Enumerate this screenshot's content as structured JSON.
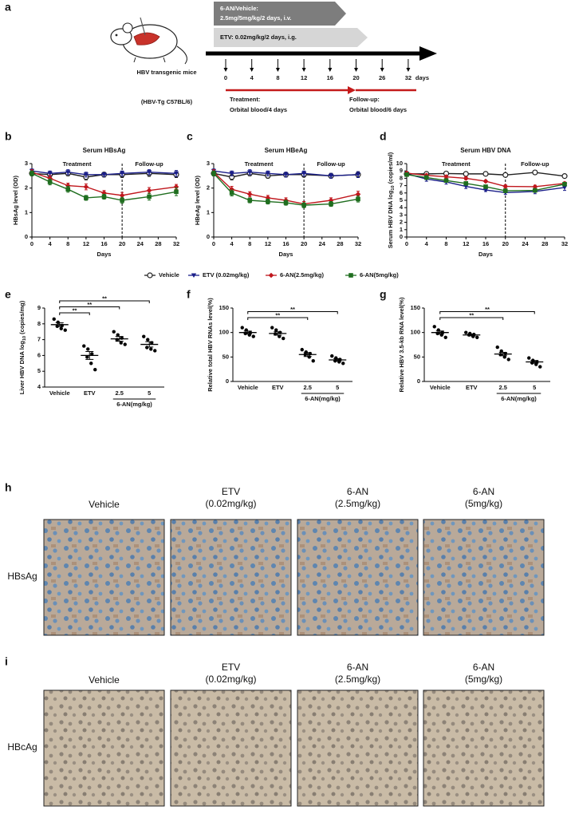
{
  "panel_labels": [
    "a",
    "b",
    "c",
    "d",
    "e",
    "f",
    "g",
    "h",
    "i"
  ],
  "schema": {
    "arrow1": [
      "6-AN/Vehicle:",
      "2.5mg/5mg/kg/2 days, i.v."
    ],
    "arrow2": "ETV: 0.02mg/kg/2 days, i.g.",
    "mice_label": "HBV transgenic mice",
    "mice_strain": "(HBV-Tg C57BL/6)",
    "days": [
      0,
      4,
      8,
      12,
      16,
      20,
      26,
      32
    ],
    "days_unit": "days",
    "treatment": [
      "Treatment:",
      "Orbital blood/4 days"
    ],
    "followup": [
      "Follow-up:",
      "Orbital blood/6 days"
    ]
  },
  "chart_data": [
    {
      "type": "line",
      "title": "Serum HBsAg",
      "annotations": [
        "Treatment",
        "Follow-up"
      ],
      "divider_x": 20,
      "x": [
        0,
        4,
        8,
        12,
        16,
        20,
        26,
        32
      ],
      "xlim": [
        0,
        32
      ],
      "xticks": [
        0,
        4,
        8,
        12,
        16,
        20,
        24,
        28,
        32
      ],
      "ylim": [
        0,
        3
      ],
      "yticks": [
        0,
        1,
        2,
        3
      ],
      "x_label": "Days",
      "y_label": "HBsAg level (OD)",
      "series": [
        {
          "name": "Vehicle",
          "color": "#222222",
          "marker": "circle",
          "values": [
            2.6,
            2.55,
            2.6,
            2.45,
            2.55,
            2.55,
            2.6,
            2.55
          ],
          "errors": [
            0.1,
            0.12,
            0.1,
            0.12,
            0.1,
            0.12,
            0.12,
            0.12
          ]
        },
        {
          "name": "ETV (0.02mg/kg)",
          "color": "#1b1f8a",
          "marker": "triangle",
          "values": [
            2.7,
            2.6,
            2.65,
            2.55,
            2.55,
            2.6,
            2.65,
            2.6
          ],
          "errors": [
            0.08,
            0.1,
            0.1,
            0.1,
            0.08,
            0.1,
            0.1,
            0.12
          ]
        },
        {
          "name": "6-AN(2.5mg/kg)",
          "color": "#c0171d",
          "marker": "diamond",
          "values": [
            2.65,
            2.4,
            2.1,
            2.05,
            1.8,
            1.7,
            1.9,
            2.05
          ],
          "errors": [
            0.1,
            0.12,
            0.1,
            0.12,
            0.1,
            0.12,
            0.12,
            0.1
          ]
        },
        {
          "name": "6-AN(5mg/kg)",
          "color": "#1f6e1f",
          "marker": "square",
          "values": [
            2.6,
            2.25,
            1.95,
            1.6,
            1.65,
            1.5,
            1.65,
            1.85
          ],
          "errors": [
            0.1,
            0.12,
            0.12,
            0.1,
            0.1,
            0.12,
            0.14,
            0.16
          ]
        }
      ]
    },
    {
      "type": "line",
      "title": "Serum HBeAg",
      "annotations": [
        "Treatment",
        "Follow-up"
      ],
      "divider_x": 20,
      "x": [
        0,
        4,
        8,
        12,
        16,
        20,
        26,
        32
      ],
      "xlim": [
        0,
        32
      ],
      "xticks": [
        0,
        4,
        8,
        12,
        16,
        20,
        24,
        28,
        32
      ],
      "ylim": [
        0,
        3
      ],
      "yticks": [
        0,
        1,
        2,
        3
      ],
      "x_label": "Days",
      "y_label": "HBeAg level (OD)",
      "series": [
        {
          "name": "Vehicle",
          "color": "#222222",
          "marker": "circle",
          "values": [
            2.6,
            2.45,
            2.6,
            2.5,
            2.55,
            2.55,
            2.5,
            2.55
          ],
          "errors": [
            0.1,
            0.12,
            0.1,
            0.1,
            0.1,
            0.1,
            0.1,
            0.12
          ]
        },
        {
          "name": "ETV (0.02mg/kg)",
          "color": "#1b1f8a",
          "marker": "triangle",
          "values": [
            2.7,
            2.6,
            2.65,
            2.6,
            2.55,
            2.6,
            2.5,
            2.55
          ],
          "errors": [
            0.08,
            0.1,
            0.1,
            0.1,
            0.1,
            0.1,
            0.1,
            0.12
          ]
        },
        {
          "name": "6-AN(2.5mg/kg)",
          "color": "#c0171d",
          "marker": "diamond",
          "values": [
            2.65,
            1.95,
            1.75,
            1.6,
            1.5,
            1.35,
            1.5,
            1.75
          ],
          "errors": [
            0.1,
            0.12,
            0.1,
            0.1,
            0.1,
            0.1,
            0.1,
            0.12
          ]
        },
        {
          "name": "6-AN(5mg/kg)",
          "color": "#1f6e1f",
          "marker": "square",
          "values": [
            2.6,
            1.8,
            1.5,
            1.45,
            1.4,
            1.3,
            1.35,
            1.55
          ],
          "errors": [
            0.1,
            0.12,
            0.1,
            0.1,
            0.1,
            0.1,
            0.1,
            0.12
          ]
        }
      ]
    },
    {
      "type": "line",
      "title": "Serum HBV DNA",
      "annotations": [
        "Treatment",
        "Follow-up"
      ],
      "divider_x": 20,
      "x": [
        0,
        4,
        8,
        12,
        16,
        20,
        26,
        32
      ],
      "xlim": [
        0,
        32
      ],
      "xticks": [
        0,
        4,
        8,
        12,
        16,
        20,
        24,
        28,
        32
      ],
      "ylim": [
        0,
        10
      ],
      "yticks": [
        0,
        1,
        2,
        3,
        4,
        5,
        6,
        7,
        8,
        9,
        10
      ],
      "x_label": "Days",
      "y_label": [
        "Serum HBV DNA log",
        "10",
        " (copies/ml)"
      ],
      "series": [
        {
          "name": "Vehicle",
          "color": "#222222",
          "marker": "circle",
          "values": [
            8.6,
            8.6,
            8.65,
            8.6,
            8.6,
            8.45,
            8.8,
            8.3
          ],
          "errors": [
            0.15,
            0.15,
            0.2,
            0.2,
            0.2,
            0.15,
            0.1,
            0.2
          ]
        },
        {
          "name": "ETV (0.02mg/kg)",
          "color": "#1b1f8a",
          "marker": "triangle",
          "values": [
            8.6,
            7.9,
            7.5,
            6.9,
            6.4,
            6.05,
            6.2,
            6.75
          ],
          "errors": [
            0.2,
            0.3,
            0.3,
            0.3,
            0.2,
            0.25,
            0.3,
            0.4
          ]
        },
        {
          "name": "6-AN(2.5mg/kg)",
          "color": "#c0171d",
          "marker": "diamond",
          "values": [
            8.7,
            8.4,
            8.2,
            8.0,
            7.6,
            6.9,
            6.85,
            7.3
          ],
          "errors": [
            0.2,
            0.2,
            0.2,
            0.2,
            0.15,
            0.2,
            0.2,
            0.2
          ]
        },
        {
          "name": "6-AN(5mg/kg)",
          "color": "#1f6e1f",
          "marker": "square",
          "values": [
            8.5,
            8.1,
            7.7,
            7.3,
            6.85,
            6.3,
            6.35,
            7.2
          ],
          "errors": [
            0.2,
            0.25,
            0.2,
            0.2,
            0.2,
            0.25,
            0.25,
            0.2
          ]
        }
      ]
    },
    {
      "type": "dot",
      "categories": [
        "Vehicle",
        "ETV",
        "2.5",
        "5"
      ],
      "group": {
        "label": "6-AN(mg/kg)",
        "categories": [
          "2.5",
          "5"
        ]
      },
      "points": [
        [
          8.3,
          8.1,
          7.9,
          7.85,
          7.7,
          7.6
        ],
        [
          6.6,
          6.4,
          6.1,
          5.9,
          5.5,
          5.1
        ],
        [
          7.5,
          7.3,
          7.1,
          7.0,
          6.8,
          6.7
        ],
        [
          7.2,
          7.0,
          6.8,
          6.5,
          6.4,
          6.3
        ]
      ],
      "means": [
        7.95,
        6.0,
        7.05,
        6.7
      ],
      "sems": [
        0.12,
        0.25,
        0.15,
        0.17
      ],
      "ylim": [
        4,
        9
      ],
      "yticks": [
        4,
        5,
        6,
        7,
        8,
        9
      ],
      "y_label": [
        "Liver HBV DNA log",
        "10",
        " (copies/mg)"
      ],
      "comparisons": [
        {
          "groups": [
            "Vehicle",
            "ETV"
          ],
          "label": "**"
        },
        {
          "groups": [
            "Vehicle",
            "2.5"
          ],
          "label": "**"
        },
        {
          "groups": [
            "Vehicle",
            "5"
          ],
          "label": "**"
        }
      ]
    },
    {
      "type": "dot",
      "categories": [
        "Vehicle",
        "ETV",
        "2.5",
        "5"
      ],
      "group": {
        "label": "6-AN(mg/kg)",
        "categories": [
          "2.5",
          "5"
        ]
      },
      "points": [
        [
          110,
          105,
          100,
          98,
          95,
          92
        ],
        [
          110,
          105,
          100,
          97,
          92,
          88
        ],
        [
          65,
          60,
          57,
          55,
          50,
          42
        ],
        [
          52,
          48,
          45,
          42,
          40,
          37
        ]
      ],
      "means": [
        100,
        98,
        55,
        44
      ],
      "sems": [
        3,
        3.5,
        4,
        2.5
      ],
      "ylim": [
        0,
        150
      ],
      "yticks": [
        0,
        50,
        100,
        150
      ],
      "y_label": "Relative total HBV RNAs level(%)",
      "comparisons": [
        {
          "groups": [
            "Vehicle",
            "2.5"
          ],
          "label": "**"
        },
        {
          "groups": [
            "Vehicle",
            "5"
          ],
          "label": "**"
        }
      ]
    },
    {
      "type": "dot",
      "categories": [
        "Vehicle",
        "ETV",
        "2.5",
        "5"
      ],
      "group": {
        "label": "6-AN(mg/kg)",
        "categories": [
          "2.5",
          "5"
        ]
      },
      "points": [
        [
          112,
          105,
          100,
          98,
          95,
          90
        ],
        [
          100,
          98,
          96,
          95,
          92,
          90
        ],
        [
          70,
          62,
          57,
          55,
          50,
          45
        ],
        [
          48,
          43,
          40,
          38,
          35,
          30
        ]
      ],
      "means": [
        100,
        95,
        56,
        40
      ],
      "sems": [
        3.2,
        1.8,
        3.5,
        2.7
      ],
      "ylim": [
        0,
        150
      ],
      "yticks": [
        0,
        50,
        100,
        150
      ],
      "y_label": "Relative HBV 3.5-kb RNA level(%)",
      "comparisons": [
        {
          "groups": [
            "Vehicle",
            "2.5"
          ],
          "label": "**"
        },
        {
          "groups": [
            "Vehicle",
            "5"
          ],
          "label": "**"
        }
      ]
    }
  ],
  "histology": {
    "columns": [
      [
        "Vehicle"
      ],
      [
        "ETV",
        "(0.02mg/kg)"
      ],
      [
        "6-AN",
        "(2.5mg/kg)"
      ],
      [
        "6-AN",
        "(5mg/kg)"
      ]
    ],
    "rows": [
      "HBsAg",
      "HBcAg"
    ]
  }
}
